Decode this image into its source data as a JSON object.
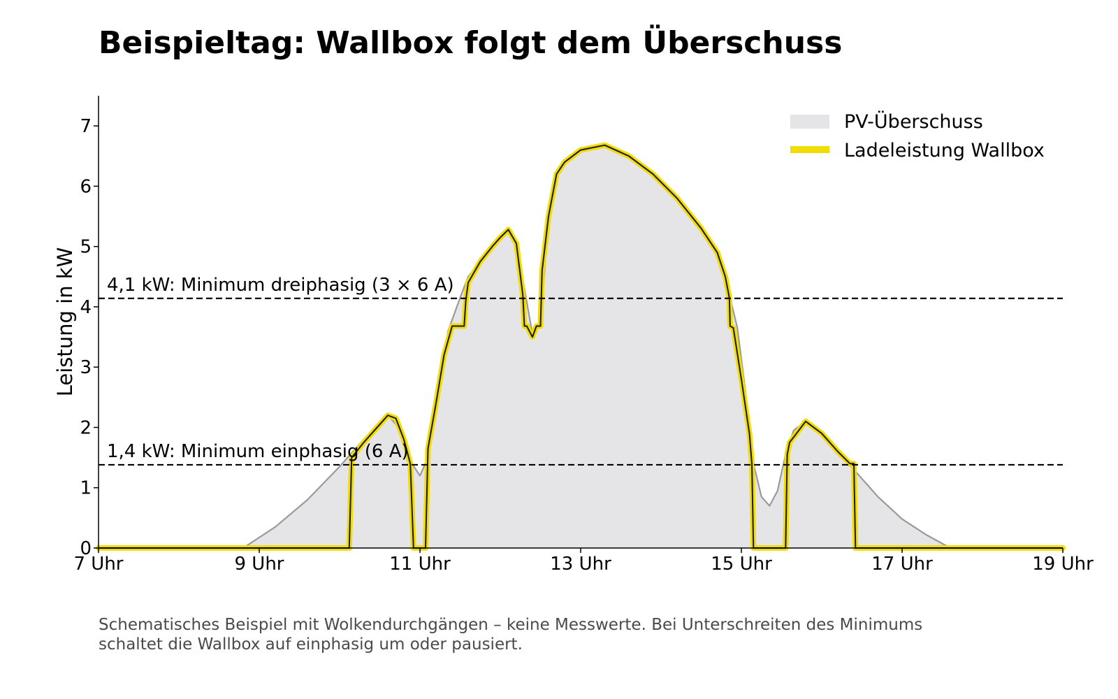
{
  "title": "Beispieltag: Wallbox folgt dem Überschuss",
  "footnote_line1": "Schematisches Beispiel mit Wolkendurchgängen – keine Messwerte. Bei Unterschreiten des Minimums",
  "footnote_line2": "schaltet die Wallbox auf einphasig um oder pausiert.",
  "chart_data": {
    "type": "area",
    "title": "Beispieltag: Wallbox folgt dem Überschuss",
    "xlabel": "",
    "ylabel": "Leistung in kW",
    "xlim": [
      7,
      19
    ],
    "ylim": [
      0,
      7.5
    ],
    "xticks": [
      7,
      9,
      11,
      13,
      15,
      17,
      19
    ],
    "xtick_labels": [
      "7 Uhr",
      "9 Uhr",
      "11 Uhr",
      "13 Uhr",
      "15 Uhr",
      "17 Uhr",
      "19 Uhr"
    ],
    "yticks": [
      0,
      1,
      2,
      3,
      4,
      5,
      6,
      7
    ],
    "ytick_labels": [
      "0",
      "1",
      "2",
      "3",
      "4",
      "5",
      "6",
      "7"
    ],
    "grid": false,
    "legend_position": "top-right",
    "series": [
      {
        "name": "PV-Überschuss",
        "color": "#e5e5e7",
        "edge_color": "#9a9a9a",
        "x": [
          7,
          8.8,
          9.2,
          9.6,
          10.0,
          10.3,
          10.6,
          10.8,
          10.9,
          11.0,
          11.1,
          11.2,
          11.35,
          11.5,
          11.6,
          11.75,
          11.9,
          12.0,
          12.1,
          12.2,
          12.3,
          12.4,
          12.5,
          12.55,
          12.6,
          12.7,
          12.8,
          13.0,
          13.3,
          13.6,
          13.9,
          14.2,
          14.5,
          14.7,
          14.85,
          14.95,
          15.05,
          15.15,
          15.25,
          15.35,
          15.45,
          15.55,
          15.65,
          15.8,
          16.0,
          16.2,
          16.4,
          16.7,
          17.0,
          17.3,
          17.6,
          19
        ],
        "y": [
          0,
          0,
          0.35,
          0.8,
          1.35,
          1.8,
          2.2,
          1.9,
          1.4,
          1.2,
          1.5,
          2.5,
          3.6,
          4.15,
          4.5,
          4.75,
          5.0,
          5.15,
          5.28,
          5.05,
          4.3,
          3.55,
          3.7,
          4.6,
          5.5,
          6.2,
          6.4,
          6.6,
          6.68,
          6.5,
          6.2,
          5.8,
          5.3,
          4.9,
          4.2,
          3.65,
          2.6,
          1.4,
          0.85,
          0.7,
          0.95,
          1.55,
          1.95,
          2.1,
          1.9,
          1.6,
          1.3,
          0.85,
          0.48,
          0.22,
          0,
          0
        ]
      },
      {
        "name": "Ladeleistung Wallbox",
        "color": "#f2dc05",
        "x": [
          7,
          10.12,
          10.15,
          10.3,
          10.5,
          10.6,
          10.7,
          10.8,
          10.88,
          10.92,
          11.07,
          11.1,
          11.2,
          11.3,
          11.4,
          11.55,
          11.57,
          11.6,
          11.75,
          11.9,
          12.0,
          12.1,
          12.2,
          12.28,
          12.3,
          12.33,
          12.4,
          12.45,
          12.5,
          12.52,
          12.6,
          12.7,
          12.8,
          13.0,
          13.3,
          13.6,
          13.9,
          14.2,
          14.5,
          14.7,
          14.8,
          14.85,
          14.86,
          14.9,
          15.0,
          15.1,
          15.13,
          15.15,
          15.55,
          15.57,
          15.6,
          15.8,
          16.0,
          16.2,
          16.35,
          16.4,
          16.42,
          19
        ],
        "y": [
          0,
          0,
          1.5,
          1.75,
          2.05,
          2.2,
          2.15,
          1.8,
          1.4,
          0,
          0,
          1.65,
          2.4,
          3.2,
          3.68,
          3.68,
          4.1,
          4.4,
          4.75,
          5.0,
          5.15,
          5.28,
          5.05,
          4.2,
          3.68,
          3.68,
          3.5,
          3.68,
          3.68,
          4.6,
          5.5,
          6.2,
          6.4,
          6.6,
          6.68,
          6.5,
          6.2,
          5.8,
          5.3,
          4.9,
          4.5,
          4.15,
          3.68,
          3.65,
          2.8,
          1.9,
          1.4,
          0,
          0,
          1.55,
          1.75,
          2.1,
          1.9,
          1.6,
          1.4,
          1.4,
          0,
          0
        ]
      }
    ],
    "thresholds": [
      {
        "value": 4.14,
        "label": "4,1 kW: Minimum dreiphasig (3 × 6 A)"
      },
      {
        "value": 1.38,
        "label": "1,4 kW: Minimum einphasig (6 A)"
      }
    ]
  }
}
